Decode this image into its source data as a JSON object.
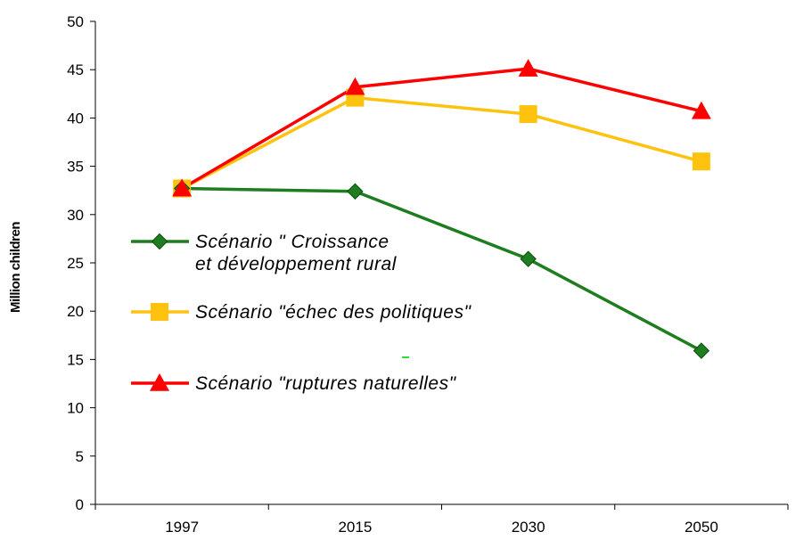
{
  "chart_data": {
    "type": "line",
    "title": "",
    "xlabel": "",
    "ylabel": "Million children",
    "ylim": [
      0,
      50
    ],
    "yticks": [
      0,
      5,
      10,
      15,
      20,
      25,
      30,
      35,
      40,
      45,
      50
    ],
    "categories": [
      "1997",
      "2015",
      "2030",
      "2050"
    ],
    "grid": false,
    "legend_position": "center-left",
    "series": [
      {
        "name": "Scénario \" Croissance et développement rural",
        "label_lines": [
          "Scénario \" Croissance",
          "et développement rural"
        ],
        "color": "#1e7d1e",
        "marker": "diamond",
        "values": [
          32.7,
          32.4,
          25.4,
          15.9
        ]
      },
      {
        "name": "Scénario \"échec des politiques\"",
        "label_lines": [
          "Scénario \"échec des politiques\""
        ],
        "color": "#ffc20e",
        "marker": "square",
        "values": [
          32.7,
          42.1,
          40.4,
          35.5
        ]
      },
      {
        "name": "Scénario \"ruptures naturelles\"",
        "label_lines": [
          "Scénario \"ruptures naturelles\""
        ],
        "color": "#ff0000",
        "marker": "triangle",
        "values": [
          32.7,
          43.2,
          45.1,
          40.7
        ]
      }
    ]
  }
}
